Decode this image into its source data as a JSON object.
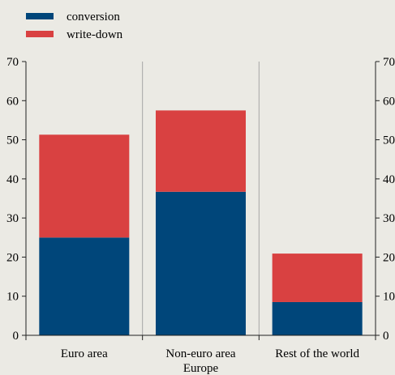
{
  "chart_data": {
    "type": "bar",
    "stacked": true,
    "categories": [
      "Euro area",
      "Non-euro area\nEurope",
      "Rest of the world"
    ],
    "series": [
      {
        "name": "conversion",
        "values": [
          25,
          36.7,
          8.5
        ],
        "color": "#00467a"
      },
      {
        "name": "write-down",
        "values": [
          26.3,
          20.8,
          12.4
        ],
        "color": "#d94141"
      }
    ],
    "ylim": [
      0,
      70
    ],
    "yticks": [
      0,
      10,
      20,
      30,
      40,
      50,
      60,
      70
    ],
    "y_axis_right_mirror": true,
    "grid": "vertical separators only",
    "legend": "top-left",
    "title": "",
    "xlabel": "",
    "ylabel": ""
  }
}
